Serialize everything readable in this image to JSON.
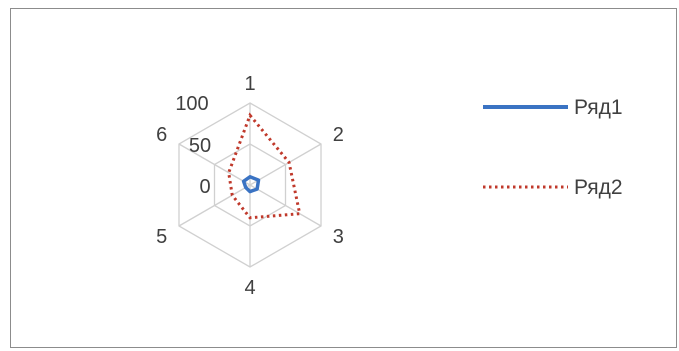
{
  "chart_data": {
    "type": "radar",
    "categories": [
      "1",
      "2",
      "3",
      "4",
      "5",
      "6"
    ],
    "axis_ticks": [
      "0",
      "50",
      "100"
    ],
    "rmax": 100,
    "series": [
      {
        "name": "Ряд1",
        "values": [
          10,
          12,
          10,
          8,
          6,
          9
        ],
        "color": "#3a73c3",
        "style": "solid"
      },
      {
        "name": "Ряд2",
        "values": [
          85,
          55,
          70,
          40,
          25,
          30
        ],
        "color": "#c0392b",
        "style": "dotted"
      }
    ],
    "grid": true,
    "legend_position": "right"
  }
}
